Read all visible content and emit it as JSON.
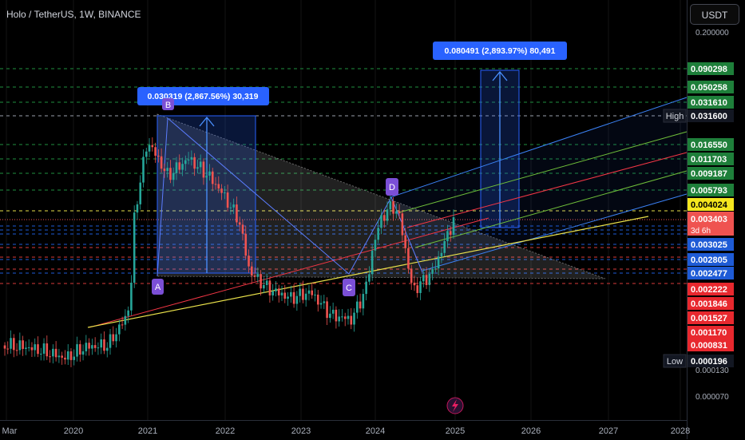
{
  "header": {
    "title": "Holo / TetherUS, 1W, BINANCE",
    "currency_label": "USDT"
  },
  "measures": [
    {
      "label": "0.030319 (2,867.56%) 30,319"
    },
    {
      "label": "0.080491 (2,893.97%) 80,491"
    }
  ],
  "points": [
    "A",
    "B",
    "C",
    "D"
  ],
  "badges": {
    "high_label": "High",
    "low_label": "Low",
    "countdown": "3d 6h"
  },
  "price_axis": {
    "plain_ticks": [
      "0.200000",
      "0.000130",
      "0.000070"
    ],
    "green_levels": [
      "0.090298",
      "0.050258",
      "0.031610",
      "0.016550",
      "0.011703",
      "0.009187",
      "0.005793"
    ],
    "high_value": "0.031600",
    "current_price": "0.003403",
    "yellow_level": "0.004024",
    "blue_levels": [
      "0.003025",
      "0.002805",
      "0.002477"
    ],
    "red_levels": [
      "0.002222",
      "0.001846",
      "0.001527",
      "0.001170",
      "0.000831"
    ],
    "low_value": "0.000196"
  },
  "time_axis": [
    "Mar",
    "2020",
    "2021",
    "2022",
    "2023",
    "2024",
    "2025",
    "2026",
    "2027",
    "2028"
  ],
  "colors": {
    "up": "#26a69a",
    "down": "#ef5350",
    "green_level": "#1e7f3a",
    "red_level": "#f23645",
    "blue_level": "#1e5bd6",
    "yellow_level": "#f5e61e",
    "label_bg": "#2962ff",
    "point_badge": "#7b4fd6"
  },
  "chart_data": {
    "type": "candlestick",
    "title": "Holo / TetherUS, 1W, BINANCE",
    "x": [
      "2019-06",
      "2019-09",
      "2019-12",
      "2020-03",
      "2020-06",
      "2020-09",
      "2020-12",
      "2021-03",
      "2021-06",
      "2021-09",
      "2021-12",
      "2022-03",
      "2022-06",
      "2022-09",
      "2022-12",
      "2023-03",
      "2023-06",
      "2023-09",
      "2023-12",
      "2024-03",
      "2024-06",
      "2024-09",
      "2024-12"
    ],
    "close_approx": [
      0.0008,
      0.0007,
      0.00045,
      0.00025,
      0.0007,
      0.0008,
      0.0014,
      0.018,
      0.008,
      0.012,
      0.008,
      0.0045,
      0.0025,
      0.0022,
      0.0019,
      0.0021,
      0.0014,
      0.0013,
      0.0028,
      0.0045,
      0.0022,
      0.0025,
      0.0034
    ],
    "current_price": 0.003403,
    "high": 0.0316,
    "low": 0.000196,
    "measurements": [
      {
        "from_point": "A",
        "change": 0.030319,
        "percent": 2867.56,
        "ticks": 30319
      },
      {
        "from": 0.003403,
        "change": 0.080491,
        "percent": 2893.97,
        "ticks": 80491
      }
    ],
    "pattern_points": [
      "A",
      "B",
      "C",
      "D"
    ]
  }
}
